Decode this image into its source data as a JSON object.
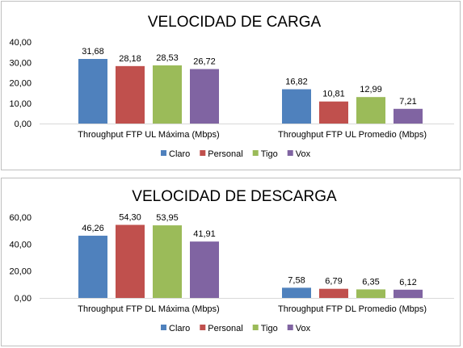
{
  "chart_data": [
    {
      "type": "bar",
      "title": "VELOCIDAD DE CARGA",
      "categories": [
        "Throughput FTP UL Máxima (Mbps)",
        "Throughput FTP UL Promedio (Mbps)"
      ],
      "series": [
        {
          "name": "Claro",
          "color": "#4f81bd",
          "values": [
            31.68,
            16.82
          ],
          "labels": [
            "31,68",
            "16,82"
          ]
        },
        {
          "name": "Personal",
          "color": "#c0504d",
          "values": [
            28.18,
            10.81
          ],
          "labels": [
            "28,18",
            "10,81"
          ]
        },
        {
          "name": "Tigo",
          "color": "#9bbb59",
          "values": [
            28.53,
            12.99
          ],
          "labels": [
            "28,53",
            "12,99"
          ]
        },
        {
          "name": "Vox",
          "color": "#8064a2",
          "values": [
            26.72,
            7.21
          ],
          "labels": [
            "26,72",
            "7,21"
          ]
        }
      ],
      "ylim": [
        0,
        40
      ],
      "yticks": [
        0,
        10,
        20,
        30,
        40
      ],
      "ytick_labels": [
        "0,00",
        "10,00",
        "20,00",
        "30,00",
        "40,00"
      ],
      "grid": false,
      "legend": "bottom"
    },
    {
      "type": "bar",
      "title": "VELOCIDAD DE DESCARGA",
      "categories": [
        "Throughput FTP DL Máxima (Mbps)",
        "Throughput FTP DL Promedio (Mbps)"
      ],
      "series": [
        {
          "name": "Claro",
          "color": "#4f81bd",
          "values": [
            46.26,
            7.58
          ],
          "labels": [
            "46,26",
            "7,58"
          ]
        },
        {
          "name": "Personal",
          "color": "#c0504d",
          "values": [
            54.3,
            6.79
          ],
          "labels": [
            "54,30",
            "6,79"
          ]
        },
        {
          "name": "Tigo",
          "color": "#9bbb59",
          "values": [
            53.95,
            6.35
          ],
          "labels": [
            "53,95",
            "6,35"
          ]
        },
        {
          "name": "Vox",
          "color": "#8064a2",
          "values": [
            41.91,
            6.12
          ],
          "labels": [
            "41,91",
            "6,12"
          ]
        }
      ],
      "ylim": [
        0,
        60
      ],
      "yticks": [
        0,
        20,
        40,
        60
      ],
      "ytick_labels": [
        "0,00",
        "20,00",
        "40,00",
        "60,00"
      ],
      "grid": false,
      "legend": "bottom"
    }
  ]
}
